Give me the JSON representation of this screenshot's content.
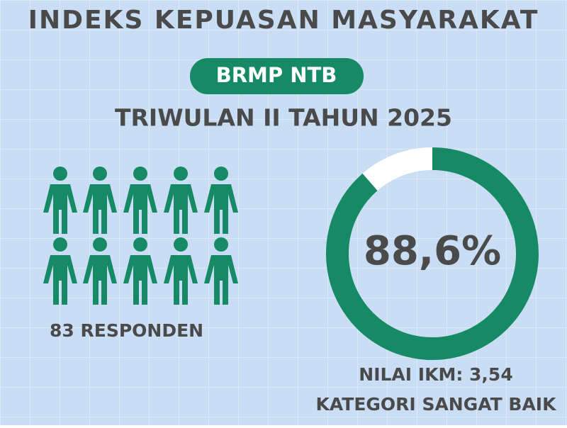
{
  "header": {
    "title": "INDEKS KEPUASAN MASYARAKAT",
    "badge": "BRMP NTB",
    "subtitle": "TRIWULAN II TAHUN 2025"
  },
  "respondents": {
    "label": "83 RESPONDEN"
  },
  "chart_data": {
    "type": "donut",
    "values": [
      88.6
    ],
    "value_labels": [
      "88,6%"
    ],
    "ylim": [
      0,
      100
    ],
    "color": "#168a64",
    "annotations": [
      "NILAI IKM: 3,54",
      "KATEGORI SANGAT BAIK"
    ]
  }
}
